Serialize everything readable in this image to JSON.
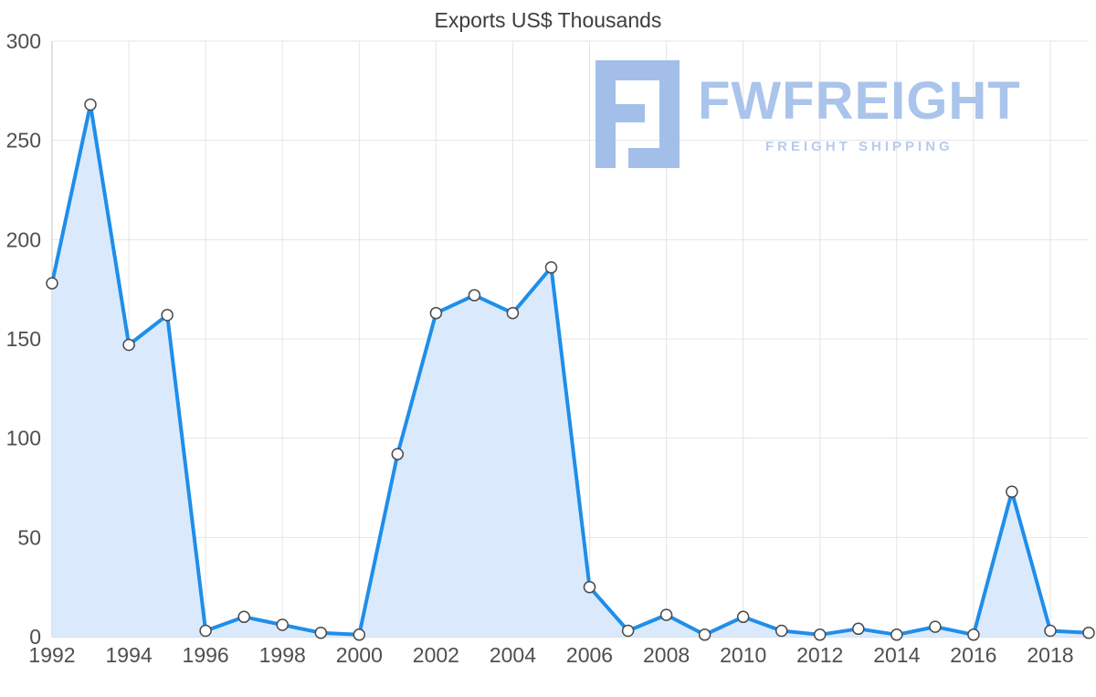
{
  "chart_data": {
    "type": "area",
    "title": "Exports US$ Thousands",
    "xlabel": "",
    "ylabel": "",
    "x": [
      1992,
      1993,
      1994,
      1995,
      1996,
      1997,
      1998,
      1999,
      2000,
      2001,
      2002,
      2003,
      2004,
      2005,
      2006,
      2007,
      2008,
      2009,
      2010,
      2011,
      2012,
      2013,
      2014,
      2015,
      2016,
      2017,
      2018,
      2019
    ],
    "values": [
      178,
      268,
      147,
      162,
      3,
      10,
      6,
      2,
      1,
      92,
      163,
      172,
      163,
      186,
      25,
      3,
      11,
      1,
      10,
      3,
      1,
      4,
      1,
      5,
      1,
      73,
      3,
      2
    ],
    "xlim": [
      1992,
      2019
    ],
    "ylim": [
      0,
      300
    ],
    "xticks": [
      1992,
      1994,
      1996,
      1998,
      2000,
      2002,
      2004,
      2006,
      2008,
      2010,
      2012,
      2014,
      2016,
      2018
    ],
    "yticks": [
      0,
      50,
      100,
      150,
      200,
      250,
      300
    ],
    "grid": true,
    "legend": false,
    "marker": "circle"
  },
  "colors": {
    "line": "#1f8eea",
    "area_fill": "#daeafc",
    "marker_fill": "#ffffff",
    "marker_stroke": "#4a4a4a",
    "grid": "#e4e4e4",
    "axis": "#c2c2c2",
    "tick_label": "#4f4f4f",
    "title": "#3d3d3d"
  },
  "logo": {
    "name": "FWFREIGHT",
    "tagline": "FREIGHT SHIPPING",
    "name_color": "#a6c1ea",
    "tagline_color": "#b3c9ee",
    "icon_color": "#9fbce8"
  }
}
